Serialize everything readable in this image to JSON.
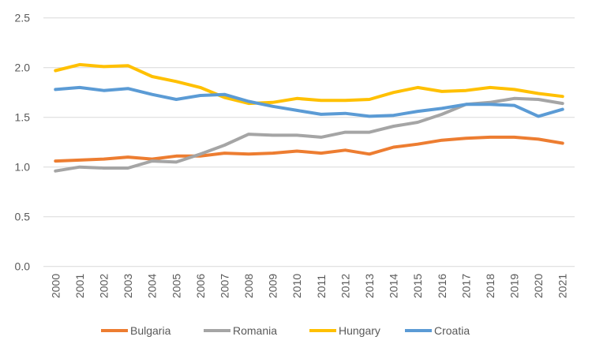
{
  "chart_data": {
    "type": "line",
    "title": "",
    "xlabel": "",
    "ylabel": "",
    "ylim": [
      0,
      2.5
    ],
    "yticks": [
      "0.0",
      "0.5",
      "1.0",
      "1.5",
      "2.0",
      "2.5"
    ],
    "grid": true,
    "legend_position": "bottom",
    "categories": [
      "2000",
      "2001",
      "2002",
      "2003",
      "2004",
      "2005",
      "2006",
      "2007",
      "2008",
      "2009",
      "2010",
      "2011",
      "2012",
      "2013",
      "2014",
      "2015",
      "2016",
      "2017",
      "2018",
      "2019",
      "2020",
      "2021"
    ],
    "series": [
      {
        "name": "Bulgaria",
        "color": "#ED7D31",
        "values": [
          1.06,
          1.07,
          1.08,
          1.1,
          1.08,
          1.11,
          1.11,
          1.14,
          1.13,
          1.14,
          1.16,
          1.14,
          1.17,
          1.13,
          1.2,
          1.23,
          1.27,
          1.29,
          1.3,
          1.3,
          1.28,
          1.24
        ]
      },
      {
        "name": "Romania",
        "color": "#A5A5A5",
        "values": [
          0.96,
          1.0,
          0.99,
          0.99,
          1.06,
          1.05,
          1.13,
          1.22,
          1.33,
          1.32,
          1.32,
          1.3,
          1.35,
          1.35,
          1.41,
          1.45,
          1.53,
          1.63,
          1.65,
          1.69,
          1.68,
          1.64
        ]
      },
      {
        "name": "Hungary",
        "color": "#FFC000",
        "values": [
          1.97,
          2.03,
          2.01,
          2.02,
          1.91,
          1.86,
          1.8,
          1.7,
          1.64,
          1.65,
          1.69,
          1.67,
          1.67,
          1.68,
          1.75,
          1.8,
          1.76,
          1.77,
          1.8,
          1.78,
          1.74,
          1.71
        ]
      },
      {
        "name": "Croatia",
        "color": "#5B9BD5",
        "values": [
          1.78,
          1.8,
          1.77,
          1.79,
          1.73,
          1.68,
          1.72,
          1.73,
          1.66,
          1.61,
          1.57,
          1.53,
          1.54,
          1.51,
          1.52,
          1.56,
          1.59,
          1.63,
          1.63,
          1.62,
          1.51,
          1.58
        ]
      }
    ]
  }
}
